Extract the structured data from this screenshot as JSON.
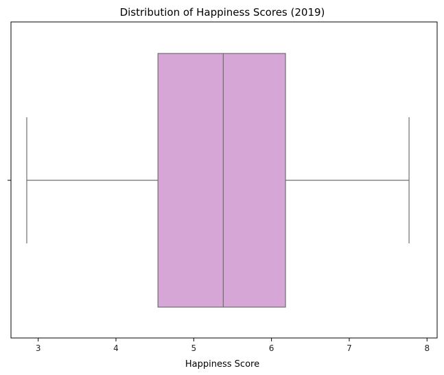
{
  "chart_data": {
    "type": "boxplot",
    "title": "Distribution of Happiness Scores (2019)",
    "xlabel": "Happiness Score",
    "ylabel": "",
    "xlim": [
      2.65,
      8.13
    ],
    "xticks": [
      3,
      4,
      5,
      6,
      7,
      8
    ],
    "xtick_labels": [
      "3",
      "4",
      "5",
      "6",
      "7",
      "8"
    ],
    "grid": false,
    "orientation": "horizontal",
    "box": {
      "min": 2.853,
      "q1": 4.54,
      "median": 5.38,
      "q3": 6.18,
      "max": 7.769
    },
    "colors": {
      "box_fill": "#D5A6D6",
      "box_line": "#6E6E6E",
      "axes": "#000000"
    }
  }
}
